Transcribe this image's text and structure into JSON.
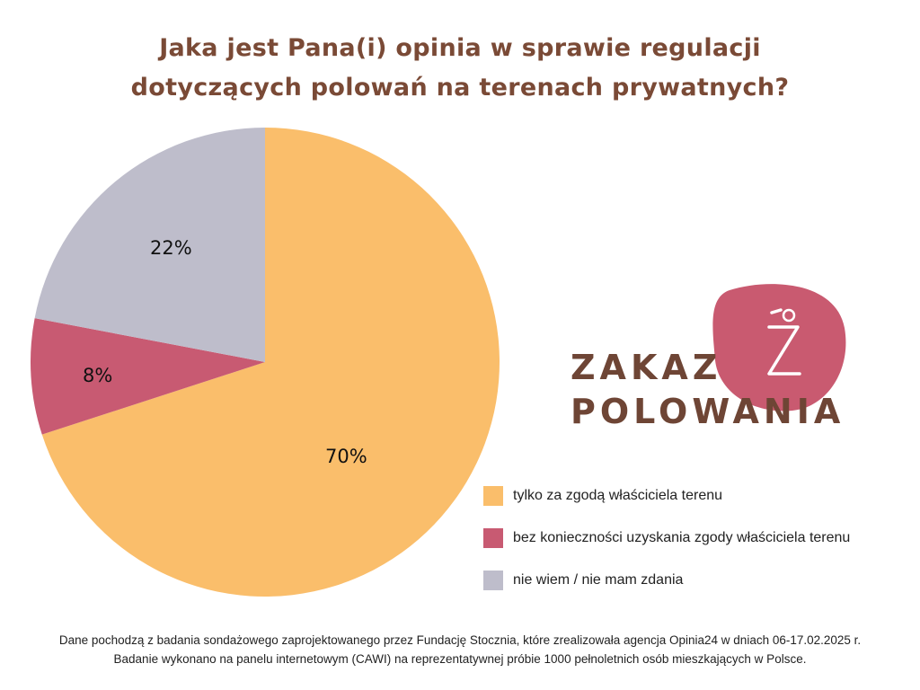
{
  "title": {
    "line1": "Jaka jest Pana(i) opinia  w sprawie regulacji",
    "line2": "dotyczących polowań na terenach prywatnych?"
  },
  "colors": {
    "title": "#7a4a36",
    "logo_text": "#6e4535",
    "logo_blob": "#c95a70",
    "logo_mark": "#ffffff"
  },
  "chart_data": {
    "type": "pie",
    "title": "Jaka jest Pana(i) opinia  w sprawie regulacji dotyczących polowań na terenach prywatnych?",
    "legend_position": "bottom-right",
    "slices": [
      {
        "name": "tylko za zgodą właściciela terenu",
        "value": 70,
        "label": "70%",
        "color": "#fabe6b"
      },
      {
        "name": "bez konieczności uzyskania zgody właściciela terenu",
        "value": 8,
        "label": "8%",
        "color": "#c85a72"
      },
      {
        "name": "nie wiem / nie mam zdania",
        "value": 22,
        "label": "22%",
        "color": "#bebdcb"
      }
    ]
  },
  "logo": {
    "line1": "ZAKAZ",
    "line2": "POLOWANIA",
    "mark_icon": "z-dot-icon"
  },
  "footnote": {
    "line1": "Dane pochodzą z badania sondażowego zaprojektowanego przez Fundację Stocznia, które zrealizowała agencja Opinia24 w dniach 06-17.02.2025 r.",
    "line2": "Badanie wykonano na panelu internetowym (CAWI) na reprezentatywnej próbie 1000 pełnoletnich osób mieszkających w Polsce."
  }
}
